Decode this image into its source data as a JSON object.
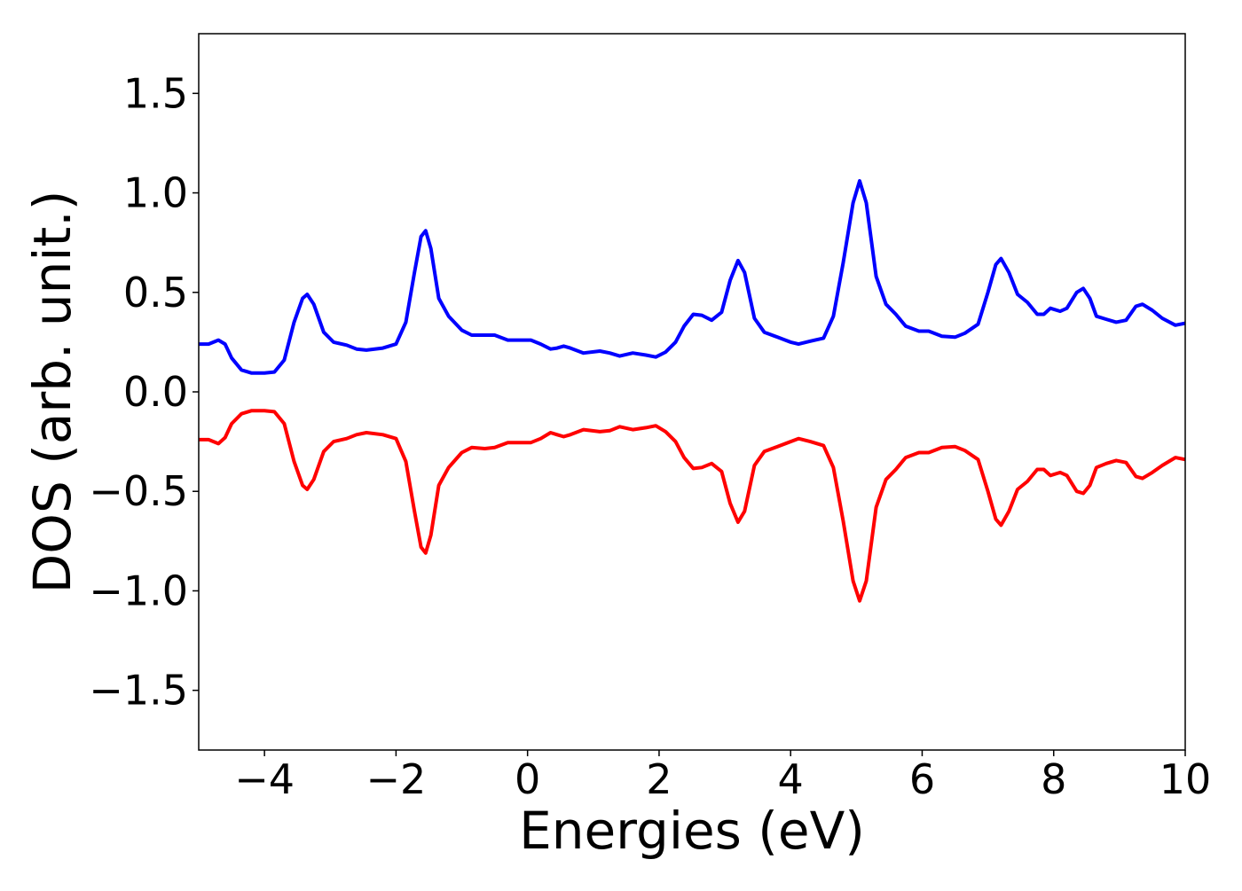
{
  "chart_data": {
    "type": "line",
    "title": "",
    "xlabel": "Energies (eV)",
    "ylabel": "DOS (arb. unit.)",
    "xlim": [
      -5,
      10
    ],
    "ylim": [
      -1.8,
      1.8
    ],
    "grid": false,
    "legend": "none",
    "xticks": [
      {
        "value": -4,
        "label": "−4"
      },
      {
        "value": -2,
        "label": "−2"
      },
      {
        "value": 0,
        "label": "0"
      },
      {
        "value": 2,
        "label": "2"
      },
      {
        "value": 4,
        "label": "4"
      },
      {
        "value": 6,
        "label": "6"
      },
      {
        "value": 8,
        "label": "8"
      },
      {
        "value": 10,
        "label": "10"
      }
    ],
    "yticks": [
      {
        "value": 1.5,
        "label": "1.5"
      },
      {
        "value": 1.0,
        "label": "1.0"
      },
      {
        "value": 0.5,
        "label": "0.5"
      },
      {
        "value": 0.0,
        "label": "0.0"
      },
      {
        "value": -0.5,
        "label": "−0.5"
      },
      {
        "value": -1.0,
        "label": "−1.0"
      },
      {
        "value": -1.5,
        "label": "−1.5"
      }
    ],
    "series": [
      {
        "color": "#0000ff",
        "points": [
          [
            -5.0,
            0.24
          ],
          [
            -4.85,
            0.24
          ],
          [
            -4.7,
            0.26
          ],
          [
            -4.6,
            0.24
          ],
          [
            -4.5,
            0.17
          ],
          [
            -4.35,
            0.11
          ],
          [
            -4.2,
            0.095
          ],
          [
            -4.0,
            0.095
          ],
          [
            -3.85,
            0.1
          ],
          [
            -3.7,
            0.16
          ],
          [
            -3.55,
            0.35
          ],
          [
            -3.42,
            0.47
          ],
          [
            -3.35,
            0.49
          ],
          [
            -3.25,
            0.44
          ],
          [
            -3.1,
            0.3
          ],
          [
            -2.95,
            0.25
          ],
          [
            -2.75,
            0.235
          ],
          [
            -2.6,
            0.215
          ],
          [
            -2.45,
            0.21
          ],
          [
            -2.2,
            0.22
          ],
          [
            -2.0,
            0.24
          ],
          [
            -1.85,
            0.35
          ],
          [
            -1.72,
            0.6
          ],
          [
            -1.62,
            0.78
          ],
          [
            -1.55,
            0.81
          ],
          [
            -1.47,
            0.72
          ],
          [
            -1.35,
            0.47
          ],
          [
            -1.2,
            0.38
          ],
          [
            -1.0,
            0.31
          ],
          [
            -0.85,
            0.285
          ],
          [
            -0.65,
            0.285
          ],
          [
            -0.5,
            0.285
          ],
          [
            -0.3,
            0.26
          ],
          [
            -0.15,
            0.26
          ],
          [
            0.05,
            0.26
          ],
          [
            0.2,
            0.24
          ],
          [
            0.35,
            0.215
          ],
          [
            0.45,
            0.22
          ],
          [
            0.55,
            0.23
          ],
          [
            0.65,
            0.22
          ],
          [
            0.85,
            0.195
          ],
          [
            1.1,
            0.205
          ],
          [
            1.25,
            0.195
          ],
          [
            1.4,
            0.18
          ],
          [
            1.6,
            0.195
          ],
          [
            1.8,
            0.185
          ],
          [
            1.95,
            0.175
          ],
          [
            2.1,
            0.2
          ],
          [
            2.25,
            0.25
          ],
          [
            2.38,
            0.33
          ],
          [
            2.52,
            0.39
          ],
          [
            2.65,
            0.385
          ],
          [
            2.8,
            0.36
          ],
          [
            2.95,
            0.4
          ],
          [
            3.08,
            0.56
          ],
          [
            3.2,
            0.66
          ],
          [
            3.3,
            0.6
          ],
          [
            3.45,
            0.37
          ],
          [
            3.6,
            0.3
          ],
          [
            3.8,
            0.275
          ],
          [
            4.0,
            0.25
          ],
          [
            4.12,
            0.24
          ],
          [
            4.3,
            0.255
          ],
          [
            4.5,
            0.27
          ],
          [
            4.65,
            0.38
          ],
          [
            4.8,
            0.65
          ],
          [
            4.95,
            0.95
          ],
          [
            5.05,
            1.06
          ],
          [
            5.15,
            0.95
          ],
          [
            5.3,
            0.58
          ],
          [
            5.45,
            0.44
          ],
          [
            5.6,
            0.39
          ],
          [
            5.75,
            0.33
          ],
          [
            5.95,
            0.305
          ],
          [
            6.1,
            0.305
          ],
          [
            6.3,
            0.28
          ],
          [
            6.5,
            0.275
          ],
          [
            6.65,
            0.295
          ],
          [
            6.85,
            0.34
          ],
          [
            7.0,
            0.5
          ],
          [
            7.12,
            0.64
          ],
          [
            7.2,
            0.67
          ],
          [
            7.32,
            0.6
          ],
          [
            7.45,
            0.49
          ],
          [
            7.6,
            0.45
          ],
          [
            7.75,
            0.39
          ],
          [
            7.85,
            0.39
          ],
          [
            7.95,
            0.42
          ],
          [
            8.1,
            0.405
          ],
          [
            8.2,
            0.42
          ],
          [
            8.35,
            0.5
          ],
          [
            8.45,
            0.52
          ],
          [
            8.55,
            0.47
          ],
          [
            8.65,
            0.38
          ],
          [
            8.8,
            0.365
          ],
          [
            8.95,
            0.35
          ],
          [
            9.1,
            0.36
          ],
          [
            9.25,
            0.43
          ],
          [
            9.35,
            0.44
          ],
          [
            9.5,
            0.41
          ],
          [
            9.65,
            0.37
          ],
          [
            9.85,
            0.335
          ],
          [
            10.0,
            0.345
          ]
        ]
      },
      {
        "color": "#ff0000",
        "points": [
          [
            -5.0,
            -0.24
          ],
          [
            -4.85,
            -0.24
          ],
          [
            -4.7,
            -0.26
          ],
          [
            -4.6,
            -0.23
          ],
          [
            -4.5,
            -0.16
          ],
          [
            -4.35,
            -0.11
          ],
          [
            -4.2,
            -0.095
          ],
          [
            -4.0,
            -0.095
          ],
          [
            -3.85,
            -0.1
          ],
          [
            -3.7,
            -0.16
          ],
          [
            -3.55,
            -0.35
          ],
          [
            -3.42,
            -0.47
          ],
          [
            -3.35,
            -0.49
          ],
          [
            -3.25,
            -0.44
          ],
          [
            -3.1,
            -0.3
          ],
          [
            -2.95,
            -0.25
          ],
          [
            -2.75,
            -0.235
          ],
          [
            -2.6,
            -0.215
          ],
          [
            -2.45,
            -0.205
          ],
          [
            -2.2,
            -0.215
          ],
          [
            -2.0,
            -0.235
          ],
          [
            -1.85,
            -0.35
          ],
          [
            -1.72,
            -0.6
          ],
          [
            -1.62,
            -0.78
          ],
          [
            -1.55,
            -0.81
          ],
          [
            -1.47,
            -0.72
          ],
          [
            -1.35,
            -0.47
          ],
          [
            -1.2,
            -0.38
          ],
          [
            -1.0,
            -0.305
          ],
          [
            -0.85,
            -0.28
          ],
          [
            -0.65,
            -0.285
          ],
          [
            -0.5,
            -0.28
          ],
          [
            -0.3,
            -0.255
          ],
          [
            -0.15,
            -0.255
          ],
          [
            0.05,
            -0.255
          ],
          [
            0.2,
            -0.235
          ],
          [
            0.35,
            -0.205
          ],
          [
            0.45,
            -0.215
          ],
          [
            0.55,
            -0.225
          ],
          [
            0.65,
            -0.215
          ],
          [
            0.85,
            -0.19
          ],
          [
            1.1,
            -0.2
          ],
          [
            1.25,
            -0.195
          ],
          [
            1.4,
            -0.175
          ],
          [
            1.6,
            -0.19
          ],
          [
            1.8,
            -0.18
          ],
          [
            1.95,
            -0.17
          ],
          [
            2.1,
            -0.2
          ],
          [
            2.25,
            -0.25
          ],
          [
            2.38,
            -0.33
          ],
          [
            2.52,
            -0.385
          ],
          [
            2.65,
            -0.38
          ],
          [
            2.8,
            -0.36
          ],
          [
            2.95,
            -0.4
          ],
          [
            3.08,
            -0.56
          ],
          [
            3.2,
            -0.655
          ],
          [
            3.3,
            -0.6
          ],
          [
            3.45,
            -0.37
          ],
          [
            3.6,
            -0.3
          ],
          [
            3.8,
            -0.275
          ],
          [
            4.0,
            -0.25
          ],
          [
            4.12,
            -0.235
          ],
          [
            4.3,
            -0.25
          ],
          [
            4.5,
            -0.27
          ],
          [
            4.65,
            -0.38
          ],
          [
            4.8,
            -0.65
          ],
          [
            4.95,
            -0.95
          ],
          [
            5.05,
            -1.05
          ],
          [
            5.15,
            -0.95
          ],
          [
            5.3,
            -0.58
          ],
          [
            5.45,
            -0.44
          ],
          [
            5.6,
            -0.39
          ],
          [
            5.75,
            -0.33
          ],
          [
            5.95,
            -0.305
          ],
          [
            6.1,
            -0.305
          ],
          [
            6.3,
            -0.28
          ],
          [
            6.5,
            -0.275
          ],
          [
            6.65,
            -0.295
          ],
          [
            6.85,
            -0.34
          ],
          [
            7.0,
            -0.5
          ],
          [
            7.12,
            -0.64
          ],
          [
            7.2,
            -0.67
          ],
          [
            7.32,
            -0.6
          ],
          [
            7.45,
            -0.49
          ],
          [
            7.6,
            -0.45
          ],
          [
            7.75,
            -0.39
          ],
          [
            7.85,
            -0.39
          ],
          [
            7.95,
            -0.42
          ],
          [
            8.1,
            -0.405
          ],
          [
            8.2,
            -0.42
          ],
          [
            8.35,
            -0.5
          ],
          [
            8.45,
            -0.51
          ],
          [
            8.55,
            -0.47
          ],
          [
            8.65,
            -0.38
          ],
          [
            8.8,
            -0.36
          ],
          [
            8.95,
            -0.345
          ],
          [
            9.1,
            -0.355
          ],
          [
            9.25,
            -0.425
          ],
          [
            9.35,
            -0.435
          ],
          [
            9.5,
            -0.405
          ],
          [
            9.65,
            -0.37
          ],
          [
            9.85,
            -0.33
          ],
          [
            10.0,
            -0.34
          ]
        ]
      }
    ]
  }
}
